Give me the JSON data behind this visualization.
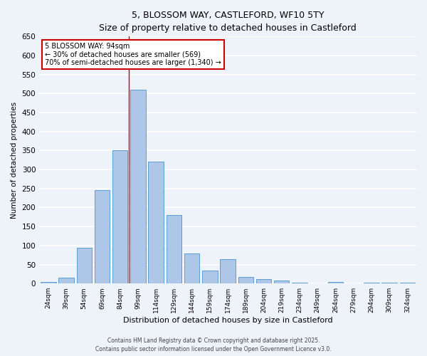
{
  "title_line1": "5, BLOSSOM WAY, CASTLEFORD, WF10 5TY",
  "title_line2": "Size of property relative to detached houses in Castleford",
  "xlabel": "Distribution of detached houses by size in Castleford",
  "ylabel": "Number of detached properties",
  "bar_labels": [
    "24sqm",
    "39sqm",
    "54sqm",
    "69sqm",
    "84sqm",
    "99sqm",
    "114sqm",
    "129sqm",
    "144sqm",
    "159sqm",
    "174sqm",
    "189sqm",
    "204sqm",
    "219sqm",
    "234sqm",
    "249sqm",
    "264sqm",
    "279sqm",
    "294sqm",
    "309sqm",
    "324sqm"
  ],
  "bar_values": [
    5,
    15,
    95,
    245,
    350,
    510,
    320,
    180,
    80,
    35,
    65,
    18,
    12,
    8,
    3,
    1,
    5,
    1,
    3,
    2,
    3
  ],
  "bar_color": "#aec6e8",
  "bar_edge_color": "#5a9fd4",
  "vline_color": "#cc0000",
  "annotation_line1": "5 BLOSSOM WAY: 94sqm",
  "annotation_line2": "← 30% of detached houses are smaller (569)",
  "annotation_line3": "70% of semi-detached houses are larger (1,340) →",
  "annotation_box_color": "#ffffff",
  "annotation_border_color": "#cc0000",
  "ylim": [
    0,
    650
  ],
  "yticks": [
    0,
    50,
    100,
    150,
    200,
    250,
    300,
    350,
    400,
    450,
    500,
    550,
    600,
    650
  ],
  "footnote_line1": "Contains HM Land Registry data © Crown copyright and database right 2025.",
  "footnote_line2": "Contains public sector information licensed under the Open Government Licence v3.0.",
  "bg_color": "#eef2f9",
  "grid_color": "#ffffff",
  "vline_x_bar_index": 4.5
}
